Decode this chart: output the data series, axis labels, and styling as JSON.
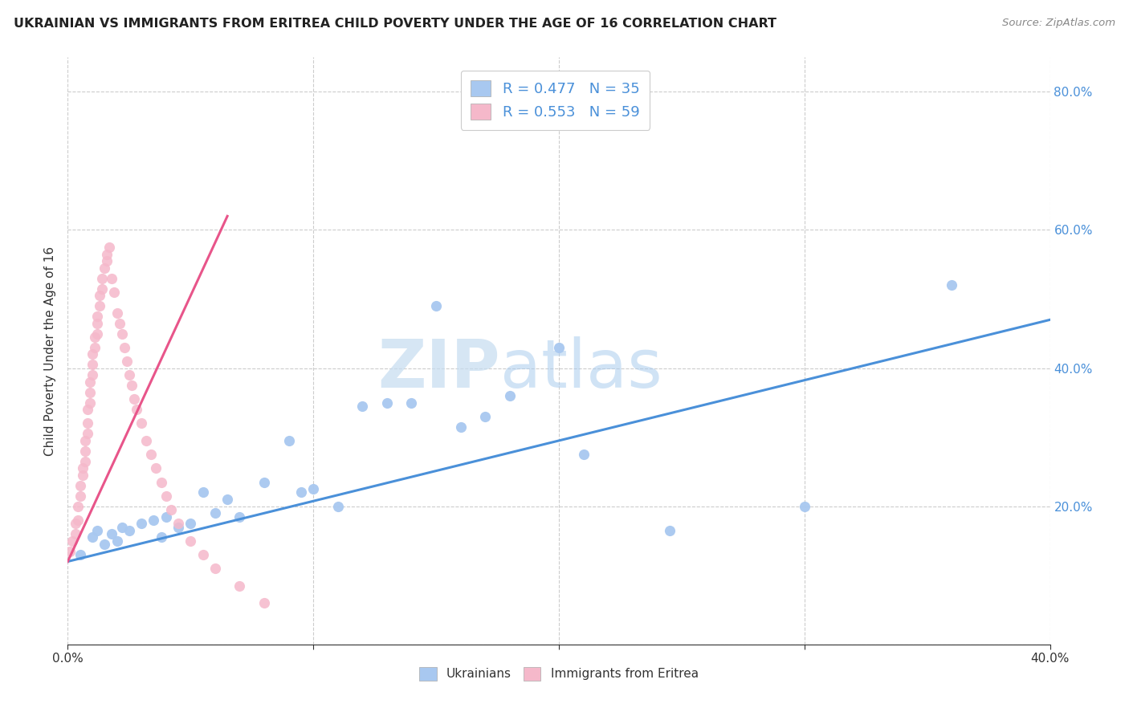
{
  "title": "UKRAINIAN VS IMMIGRANTS FROM ERITREA CHILD POVERTY UNDER THE AGE OF 16 CORRELATION CHART",
  "source": "Source: ZipAtlas.com",
  "ylabel": "Child Poverty Under the Age of 16",
  "xlim": [
    0.0,
    0.4
  ],
  "ylim": [
    0.0,
    0.85
  ],
  "xticks": [
    0.0,
    0.1,
    0.2,
    0.3,
    0.4
  ],
  "yticks": [
    0.0,
    0.2,
    0.4,
    0.6,
    0.8
  ],
  "legend_label1": "Ukrainians",
  "legend_label2": "Immigrants from Eritrea",
  "R1": "0.477",
  "N1": "35",
  "R2": "0.553",
  "N2": "59",
  "color_blue": "#A8C8F0",
  "color_pink": "#F5B8CA",
  "line_color_blue": "#4A90D9",
  "line_color_pink": "#E8558A",
  "watermark_zip": "ZIP",
  "watermark_atlas": "atlas",
  "ukr_x": [
    0.005,
    0.01,
    0.012,
    0.015,
    0.018,
    0.02,
    0.022,
    0.025,
    0.03,
    0.035,
    0.038,
    0.04,
    0.045,
    0.05,
    0.055,
    0.06,
    0.065,
    0.07,
    0.08,
    0.09,
    0.095,
    0.1,
    0.11,
    0.12,
    0.13,
    0.14,
    0.15,
    0.16,
    0.17,
    0.18,
    0.2,
    0.21,
    0.245,
    0.3,
    0.36
  ],
  "ukr_y": [
    0.13,
    0.155,
    0.165,
    0.145,
    0.16,
    0.15,
    0.17,
    0.165,
    0.175,
    0.18,
    0.155,
    0.185,
    0.17,
    0.175,
    0.22,
    0.19,
    0.21,
    0.185,
    0.235,
    0.295,
    0.22,
    0.225,
    0.2,
    0.345,
    0.35,
    0.35,
    0.49,
    0.315,
    0.33,
    0.36,
    0.43,
    0.275,
    0.165,
    0.2,
    0.52
  ],
  "eri_x": [
    0.001,
    0.002,
    0.003,
    0.003,
    0.004,
    0.004,
    0.005,
    0.005,
    0.006,
    0.006,
    0.007,
    0.007,
    0.007,
    0.008,
    0.008,
    0.008,
    0.009,
    0.009,
    0.009,
    0.01,
    0.01,
    0.01,
    0.011,
    0.011,
    0.012,
    0.012,
    0.012,
    0.013,
    0.013,
    0.014,
    0.014,
    0.015,
    0.016,
    0.016,
    0.017,
    0.018,
    0.019,
    0.02,
    0.021,
    0.022,
    0.023,
    0.024,
    0.025,
    0.026,
    0.027,
    0.028,
    0.03,
    0.032,
    0.034,
    0.036,
    0.038,
    0.04,
    0.042,
    0.045,
    0.05,
    0.055,
    0.06,
    0.07,
    0.08
  ],
  "eri_y": [
    0.135,
    0.15,
    0.16,
    0.175,
    0.18,
    0.2,
    0.215,
    0.23,
    0.245,
    0.255,
    0.265,
    0.28,
    0.295,
    0.305,
    0.32,
    0.34,
    0.35,
    0.365,
    0.38,
    0.39,
    0.405,
    0.42,
    0.43,
    0.445,
    0.45,
    0.465,
    0.475,
    0.49,
    0.505,
    0.515,
    0.53,
    0.545,
    0.555,
    0.565,
    0.575,
    0.53,
    0.51,
    0.48,
    0.465,
    0.45,
    0.43,
    0.41,
    0.39,
    0.375,
    0.355,
    0.34,
    0.32,
    0.295,
    0.275,
    0.255,
    0.235,
    0.215,
    0.195,
    0.175,
    0.15,
    0.13,
    0.11,
    0.085,
    0.06
  ]
}
